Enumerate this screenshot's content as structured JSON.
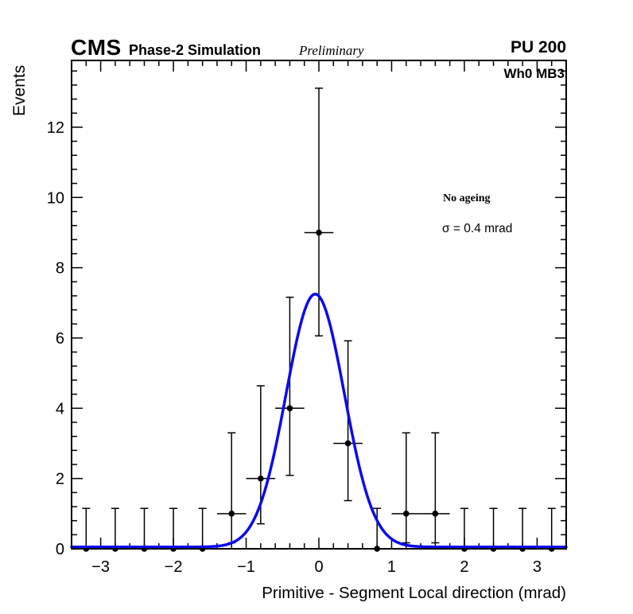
{
  "header": {
    "experiment": "CMS",
    "simulation_label": "Phase-2 Simulation",
    "preliminary_label": "Preliminary",
    "pileup_label": "PU 200"
  },
  "plot_labels": {
    "corner": "Wh0 MB3",
    "annotation_line1": "No ageing",
    "annotation_line2": "σ = 0.4 mrad"
  },
  "chart_data": {
    "type": "scatter",
    "title": "",
    "xlabel": "Primitive - Segment Local direction (mrad)",
    "ylabel": "Events",
    "xlim": [
      -3.4,
      3.4
    ],
    "ylim": [
      0,
      13.9
    ],
    "grid": false,
    "legend_position": "none",
    "x_major_ticks": [
      -3,
      -2,
      -1,
      0,
      1,
      2,
      3
    ],
    "x_tick_labels": [
      "−3",
      "−2",
      "−1",
      "0",
      "1",
      "2",
      "3"
    ],
    "x_minor_step": 0.2,
    "y_major_ticks": [
      0,
      2,
      4,
      6,
      8,
      10,
      12
    ],
    "y_tick_labels": [
      "0",
      "2",
      "4",
      "6",
      "8",
      "10",
      "12"
    ],
    "y_minor_step": 0.4,
    "bin_half_width": 0.2,
    "points": [
      {
        "x": -3.2,
        "y": 0,
        "err_up": 1.15,
        "err_down": 0
      },
      {
        "x": -2.8,
        "y": 0,
        "err_up": 1.15,
        "err_down": 0
      },
      {
        "x": -2.4,
        "y": 0,
        "err_up": 1.15,
        "err_down": 0
      },
      {
        "x": -2.0,
        "y": 0,
        "err_up": 1.15,
        "err_down": 0
      },
      {
        "x": -1.6,
        "y": 0,
        "err_up": 1.15,
        "err_down": 0
      },
      {
        "x": -1.2,
        "y": 1,
        "err_up": 2.3,
        "err_down": 0.83
      },
      {
        "x": -0.8,
        "y": 2,
        "err_up": 2.64,
        "err_down": 1.29
      },
      {
        "x": -0.4,
        "y": 4,
        "err_up": 3.16,
        "err_down": 1.91
      },
      {
        "x": 0.0,
        "y": 9,
        "err_up": 4.11,
        "err_down": 2.94
      },
      {
        "x": 0.4,
        "y": 3,
        "err_up": 2.92,
        "err_down": 1.63
      },
      {
        "x": 0.8,
        "y": 0,
        "err_up": 1.15,
        "err_down": 0
      },
      {
        "x": 1.2,
        "y": 1,
        "err_up": 2.3,
        "err_down": 0.83
      },
      {
        "x": 1.6,
        "y": 1,
        "err_up": 2.3,
        "err_down": 0.83
      },
      {
        "x": 2.0,
        "y": 0,
        "err_up": 1.15,
        "err_down": 0
      },
      {
        "x": 2.4,
        "y": 0,
        "err_up": 1.15,
        "err_down": 0
      },
      {
        "x": 2.8,
        "y": 0,
        "err_up": 1.15,
        "err_down": 0
      },
      {
        "x": 3.2,
        "y": 0,
        "err_up": 1.15,
        "err_down": 0
      }
    ],
    "fit": {
      "shape": "gaussian",
      "amplitude": 7.2,
      "mean": -0.05,
      "sigma": 0.4,
      "baseline": 0.05,
      "color": "#0a0af0",
      "line_width": 3.5
    },
    "marker": {
      "color": "#000000",
      "radius": 3.8
    }
  }
}
